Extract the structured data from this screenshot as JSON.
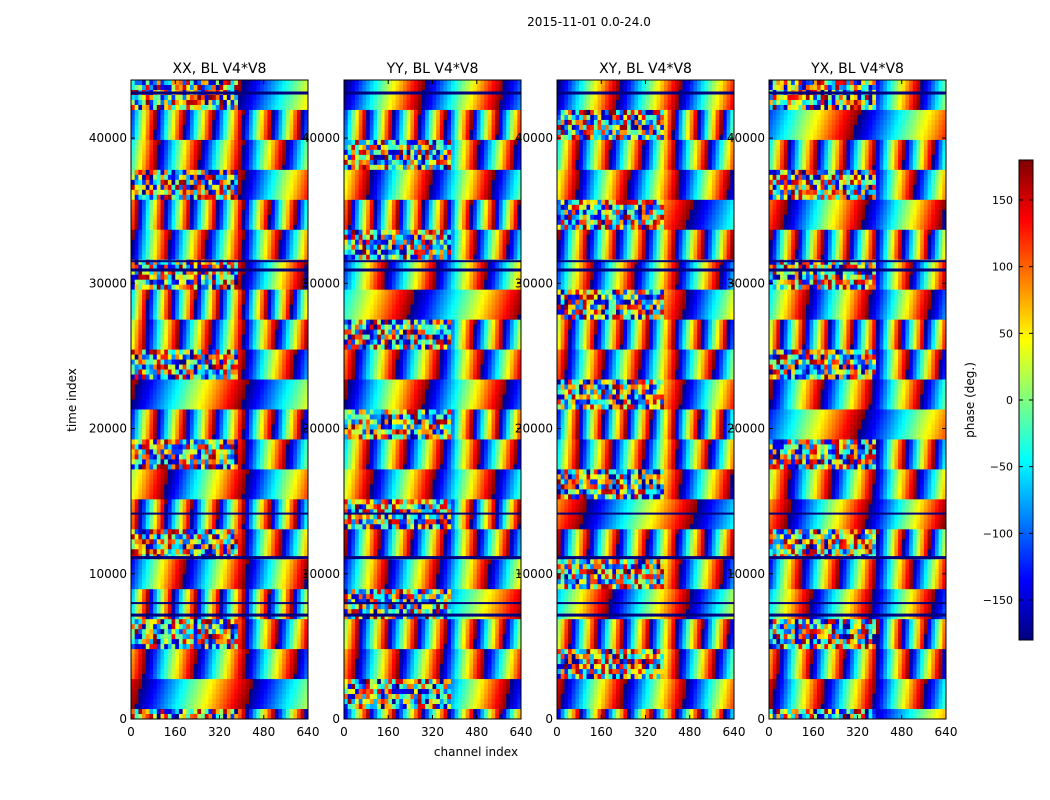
{
  "figure_title": "2015-11-01 0.0-24.0",
  "chart_data": [
    {
      "type": "heatmap",
      "title": "XX, BL V4*V8",
      "xlabel": "channel index",
      "ylabel": "time index",
      "xlim": [
        0,
        640
      ],
      "ylim": [
        0,
        44000
      ],
      "xticks": [
        0,
        160,
        320,
        480,
        640
      ],
      "yticks": [
        0,
        10000,
        20000,
        30000,
        40000
      ],
      "value_range": [
        -180,
        180
      ],
      "colormap": "jet"
    },
    {
      "type": "heatmap",
      "title": "YY, BL V4*V8",
      "xlabel": "channel index",
      "ylabel": "",
      "xlim": [
        0,
        640
      ],
      "ylim": [
        0,
        44000
      ],
      "xticks": [
        0,
        160,
        320,
        480,
        640
      ],
      "yticks": [
        0,
        10000,
        20000,
        30000,
        40000
      ],
      "value_range": [
        -180,
        180
      ],
      "colormap": "jet"
    },
    {
      "type": "heatmap",
      "title": "XY, BL V4*V8",
      "xlabel": "",
      "ylabel": "",
      "xlim": [
        0,
        640
      ],
      "ylim": [
        0,
        44000
      ],
      "xticks": [
        0,
        160,
        320,
        480,
        640
      ],
      "yticks": [
        0,
        10000,
        20000,
        30000,
        40000
      ],
      "value_range": [
        -180,
        180
      ],
      "colormap": "jet"
    },
    {
      "type": "heatmap",
      "title": "YX, BL V4*V8",
      "xlabel": "",
      "ylabel": "",
      "xlim": [
        0,
        640
      ],
      "ylim": [
        0,
        44000
      ],
      "xticks": [
        0,
        160,
        320,
        480,
        640
      ],
      "yticks": [
        0,
        10000,
        20000,
        30000,
        40000
      ],
      "value_range": [
        -180,
        180
      ],
      "colormap": "jet"
    }
  ],
  "colorbar": {
    "label": "phase (deg.)",
    "range": [
      -180,
      180
    ],
    "ticks": [
      150,
      100,
      50,
      0,
      -50,
      -100,
      -150
    ],
    "tick_labels": [
      "150",
      "100",
      "50",
      "0",
      "−50",
      "−100",
      "−150"
    ],
    "colormap": "jet"
  },
  "colors": {
    "axis": "#000000",
    "background": "#ffffff",
    "jet": [
      "#00007f",
      "#0000ff",
      "#007fff",
      "#00ffff",
      "#7fff7f",
      "#ffff00",
      "#ff7f00",
      "#ff0000",
      "#7f0000"
    ]
  }
}
